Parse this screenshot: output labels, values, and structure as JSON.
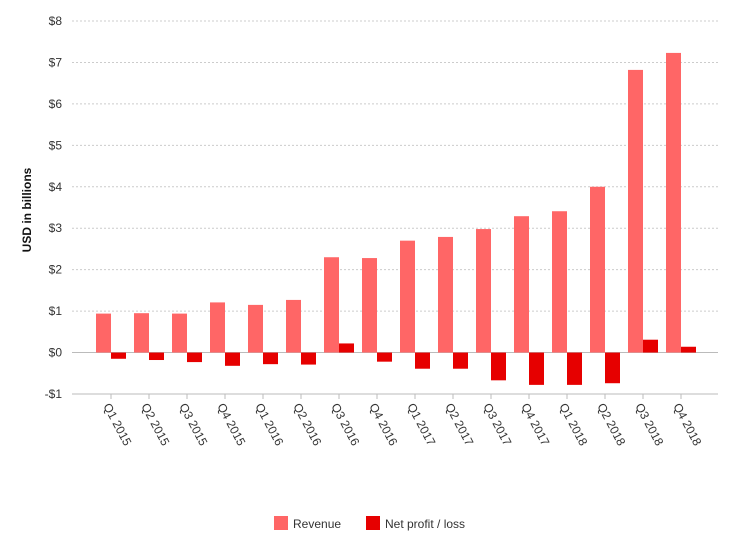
{
  "chart_data": {
    "type": "bar",
    "title": "",
    "ylabel": "USD in billions",
    "xlabel": "",
    "ylim": [
      -1,
      8
    ],
    "yticks": [
      -1,
      0,
      1,
      2,
      3,
      4,
      5,
      6,
      7,
      8
    ],
    "ytick_labels": [
      "-$1",
      "$0",
      "$1",
      "$2",
      "$3",
      "$4",
      "$5",
      "$6",
      "$7",
      "$8"
    ],
    "grid": true,
    "legend_position": "bottom",
    "categories": [
      "Q1 2015",
      "Q2 2015",
      "Q3 2015",
      "Q4 2015",
      "Q1 2016",
      "Q2 2016",
      "Q3 2016",
      "Q4 2016",
      "Q1 2017",
      "Q2 2017",
      "Q3 2017",
      "Q4 2017",
      "Q1 2018",
      "Q2 2018",
      "Q3 2018",
      "Q4 2018"
    ],
    "series": [
      {
        "name": "Revenue",
        "color": "#ff6666",
        "values": [
          0.94,
          0.95,
          0.94,
          1.21,
          1.15,
          1.27,
          2.3,
          2.28,
          2.7,
          2.79,
          2.98,
          3.29,
          3.41,
          4.0,
          6.82,
          7.23
        ]
      },
      {
        "name": "Net profit / loss",
        "color": "#e60000",
        "values": [
          -0.15,
          -0.18,
          -0.23,
          -0.32,
          -0.28,
          -0.29,
          0.22,
          -0.22,
          -0.39,
          -0.39,
          -0.67,
          -0.78,
          -0.78,
          -0.74,
          0.31,
          0.14
        ]
      }
    ]
  }
}
